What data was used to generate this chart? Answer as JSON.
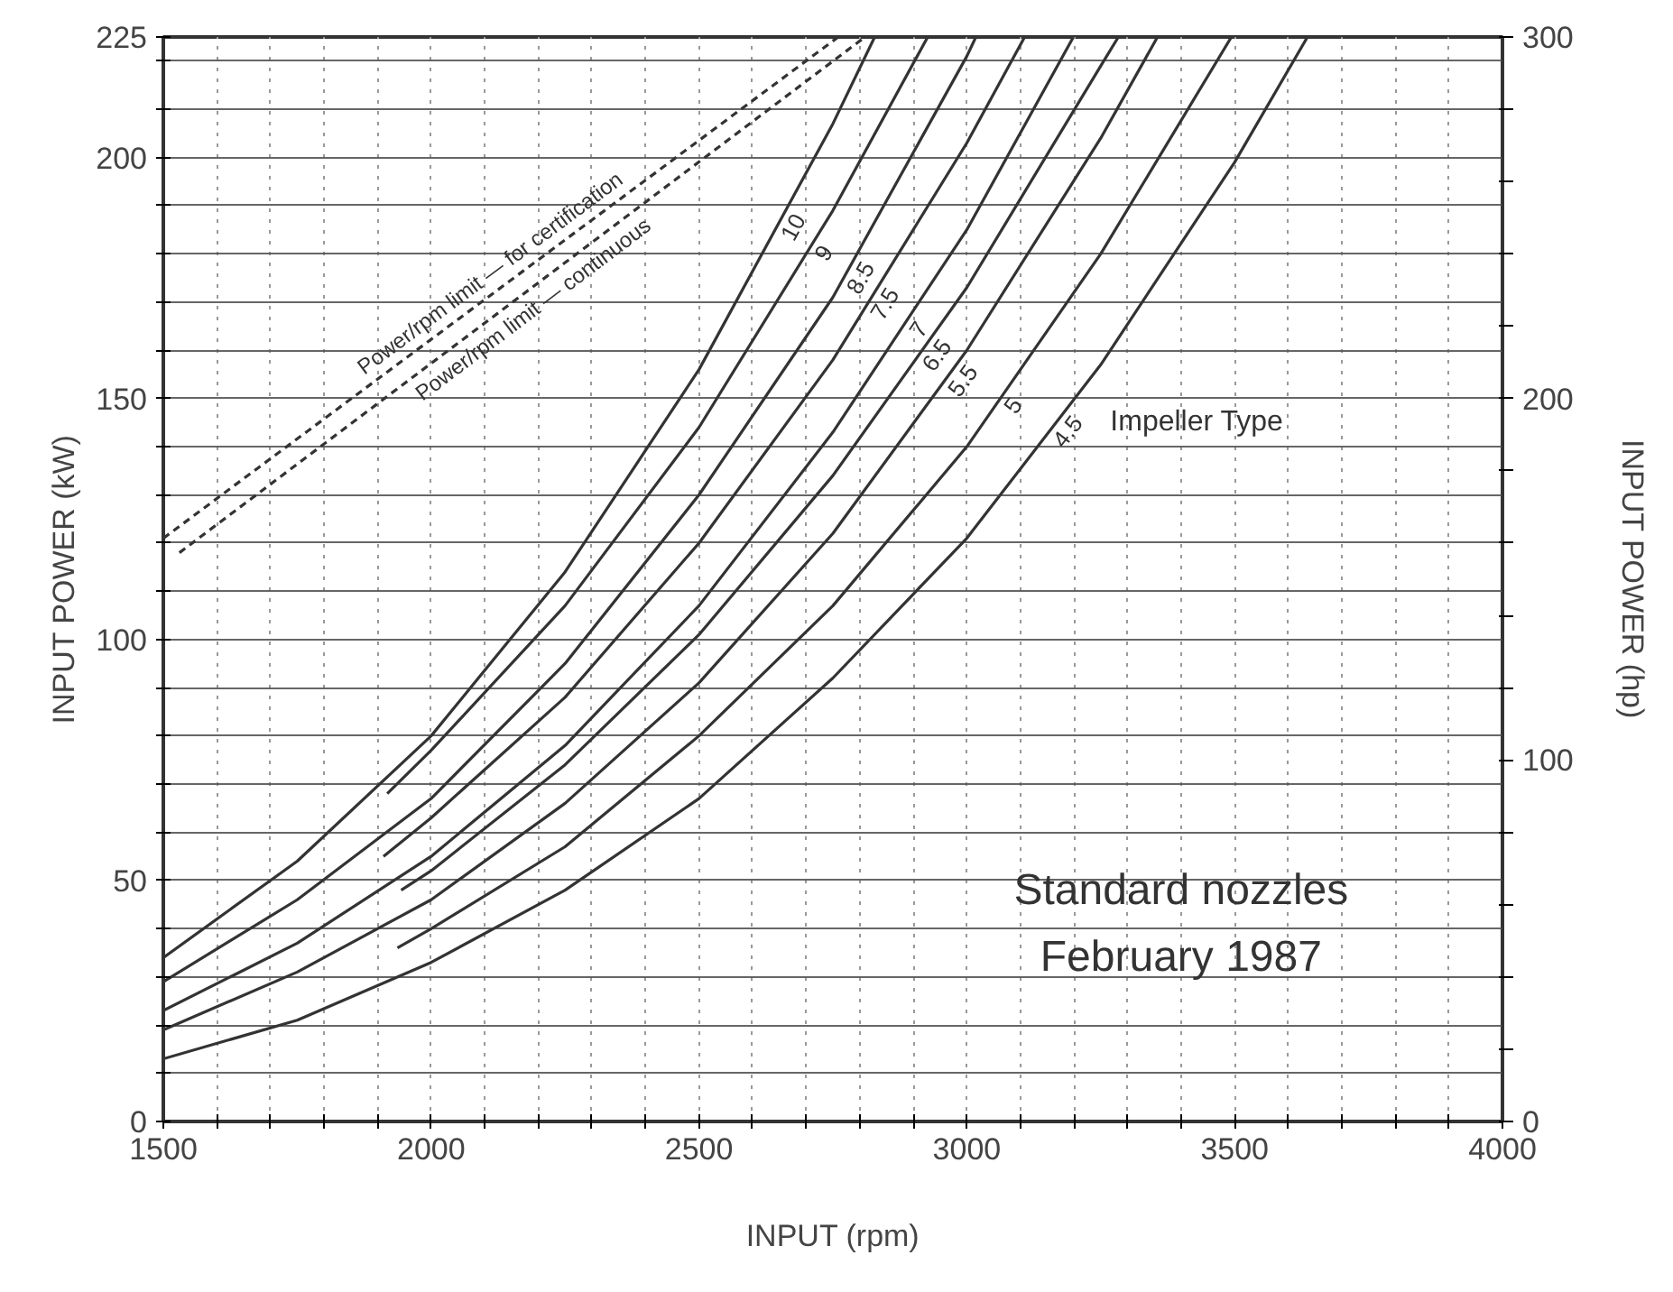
{
  "chart_data": {
    "type": "line",
    "xlabel": "INPUT (rpm)",
    "ylabel": "INPUT POWER (kW)",
    "y2label": "INPUT POWER (hp)",
    "legend_title": "Impeller Type",
    "xlim": [
      1500,
      4000
    ],
    "ylim": [
      0,
      225
    ],
    "y2lim": [
      0,
      300
    ],
    "xticks": [
      1500,
      {
        "value": 1600,
        "label": null
      },
      {
        "value": 1700,
        "label": null
      },
      {
        "value": 1800,
        "label": null
      },
      {
        "value": 1900,
        "label": null
      },
      2000,
      {
        "value": 2100,
        "label": null
      },
      {
        "value": 2200,
        "label": null
      },
      {
        "value": 2300,
        "label": null
      },
      {
        "value": 2400,
        "label": null
      },
      2500,
      {
        "value": 2600,
        "label": null
      },
      {
        "value": 2700,
        "label": null
      },
      {
        "value": 2800,
        "label": null
      },
      {
        "value": 2900,
        "label": null
      },
      3000,
      {
        "value": 3100,
        "label": null
      },
      {
        "value": 3200,
        "label": null
      },
      {
        "value": 3300,
        "label": null
      },
      {
        "value": 3400,
        "label": null
      },
      3500,
      {
        "value": 3600,
        "label": null
      },
      {
        "value": 3700,
        "label": null
      },
      {
        "value": 3800,
        "label": null
      },
      {
        "value": 3900,
        "label": null
      },
      4000
    ],
    "yticks": [
      0,
      {
        "value": 10,
        "label": null
      },
      {
        "value": 20,
        "label": null
      },
      {
        "value": 30,
        "label": null
      },
      {
        "value": 40,
        "label": null
      },
      50,
      {
        "value": 60,
        "label": null
      },
      {
        "value": 70,
        "label": null
      },
      {
        "value": 80,
        "label": null
      },
      {
        "value": 90,
        "label": null
      },
      100,
      {
        "value": 110,
        "label": null
      },
      {
        "value": 120,
        "label": null
      },
      {
        "value": 130,
        "label": null
      },
      {
        "value": 140,
        "label": null
      },
      150,
      {
        "value": 160,
        "label": null
      },
      {
        "value": 170,
        "label": null
      },
      {
        "value": 180,
        "label": null
      },
      {
        "value": 190,
        "label": null
      },
      200,
      {
        "value": 210,
        "label": null
      },
      {
        "value": 220,
        "label": null
      },
      225
    ],
    "y2ticks": [
      0,
      {
        "value": 20,
        "label": null
      },
      {
        "value": 40,
        "label": null
      },
      {
        "value": 60,
        "label": null
      },
      {
        "value": 80,
        "label": null
      },
      100,
      {
        "value": 120,
        "label": null
      },
      {
        "value": 140,
        "label": null
      },
      {
        "value": 160,
        "label": null
      },
      {
        "value": 180,
        "label": null
      },
      200,
      {
        "value": 220,
        "label": null
      },
      {
        "value": 240,
        "label": null
      },
      {
        "value": 260,
        "label": null
      },
      {
        "value": 280,
        "label": null
      },
      300
    ],
    "grid": true,
    "line_style": "solid",
    "marker": "none",
    "series": [
      {
        "name": "10",
        "color": "#333333",
        "x": [
          1500,
          1750,
          2000,
          2250,
          2500,
          2750,
          2828
        ],
        "values": [
          34,
          54,
          80,
          114,
          156,
          207,
          225
        ]
      },
      {
        "name": "9",
        "color": "#333333",
        "x": [
          1918,
          2000,
          2250,
          2500,
          2750,
          2927
        ],
        "values": [
          68,
          77,
          107,
          144,
          189,
          225
        ]
      },
      {
        "name": "8.5",
        "color": "#333333",
        "x": [
          1500,
          1750,
          2000,
          2250,
          2500,
          2750,
          3000,
          3017
        ],
        "values": [
          29,
          46,
          67,
          95,
          130,
          171,
          221,
          225
        ]
      },
      {
        "name": "7.5",
        "color": "#333333",
        "x": [
          1911,
          2000,
          2250,
          2500,
          2750,
          3000,
          3108
        ],
        "values": [
          55,
          63,
          88,
          120,
          158,
          203,
          225
        ]
      },
      {
        "name": "7",
        "color": "#333333",
        "x": [
          1500,
          1750,
          2000,
          2250,
          2500,
          2750,
          3000,
          3199
        ],
        "values": [
          23,
          37,
          55,
          78,
          107,
          143,
          185,
          225
        ]
      },
      {
        "name": "6.5",
        "color": "#333333",
        "x": [
          1944,
          2000,
          2250,
          2500,
          2750,
          3000,
          3250,
          3283
        ],
        "values": [
          48,
          52,
          74,
          101,
          134,
          173,
          219,
          225
        ]
      },
      {
        "name": "5.5",
        "color": "#333333",
        "x": [
          1500,
          1750,
          2000,
          2250,
          2500,
          2750,
          3000,
          3250,
          3356
        ],
        "values": [
          19,
          31,
          46,
          66,
          91,
          122,
          160,
          204,
          225
        ]
      },
      {
        "name": "5",
        "color": "#333333",
        "x": [
          1937,
          2000,
          2250,
          2500,
          2750,
          3000,
          3250,
          3494
        ],
        "values": [
          36,
          40,
          57,
          80,
          107,
          140,
          180,
          225
        ]
      },
      {
        "name": "4.5",
        "color": "#333333",
        "x": [
          1500,
          1750,
          2000,
          2250,
          2500,
          2750,
          3000,
          3250,
          3500,
          3636
        ],
        "values": [
          13,
          21,
          33,
          48,
          67,
          92,
          121,
          157,
          199,
          225
        ]
      },
      {
        "name": "Power/rpm limit — for certification",
        "color": "#333333",
        "line_style": "dashed",
        "x": [
          1500,
          2760
        ],
        "values": [
          121,
          225
        ]
      },
      {
        "name": "Power/rpm limit — continuous",
        "color": "#333333",
        "line_style": "dashed",
        "x": [
          1530,
          2810
        ],
        "values": [
          118,
          225
        ]
      }
    ],
    "annotations": [
      "Standard nozzles",
      "February 1987"
    ]
  }
}
